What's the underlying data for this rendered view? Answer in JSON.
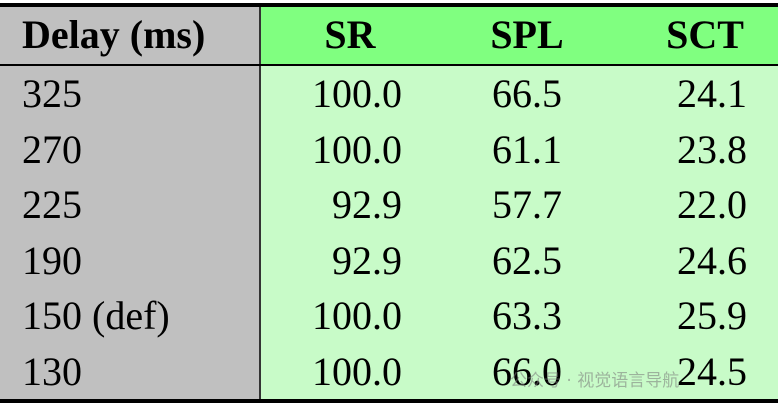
{
  "table": {
    "header": [
      "Delay (ms)",
      "SR",
      "SPL",
      "SCT"
    ],
    "rows": [
      [
        "325",
        "100.0",
        "66.5",
        "24.1"
      ],
      [
        "270",
        "100.0",
        "61.1",
        "23.8"
      ],
      [
        "225",
        "92.9",
        "57.7",
        "22.0"
      ],
      [
        "190",
        "92.9",
        "62.5",
        "24.6"
      ],
      [
        "150 (def)",
        "100.0",
        "63.3",
        "25.9"
      ],
      [
        "130",
        "100.0",
        "66.0",
        "24.5"
      ]
    ]
  },
  "watermark": "公众号 · 视觉语言导航"
}
